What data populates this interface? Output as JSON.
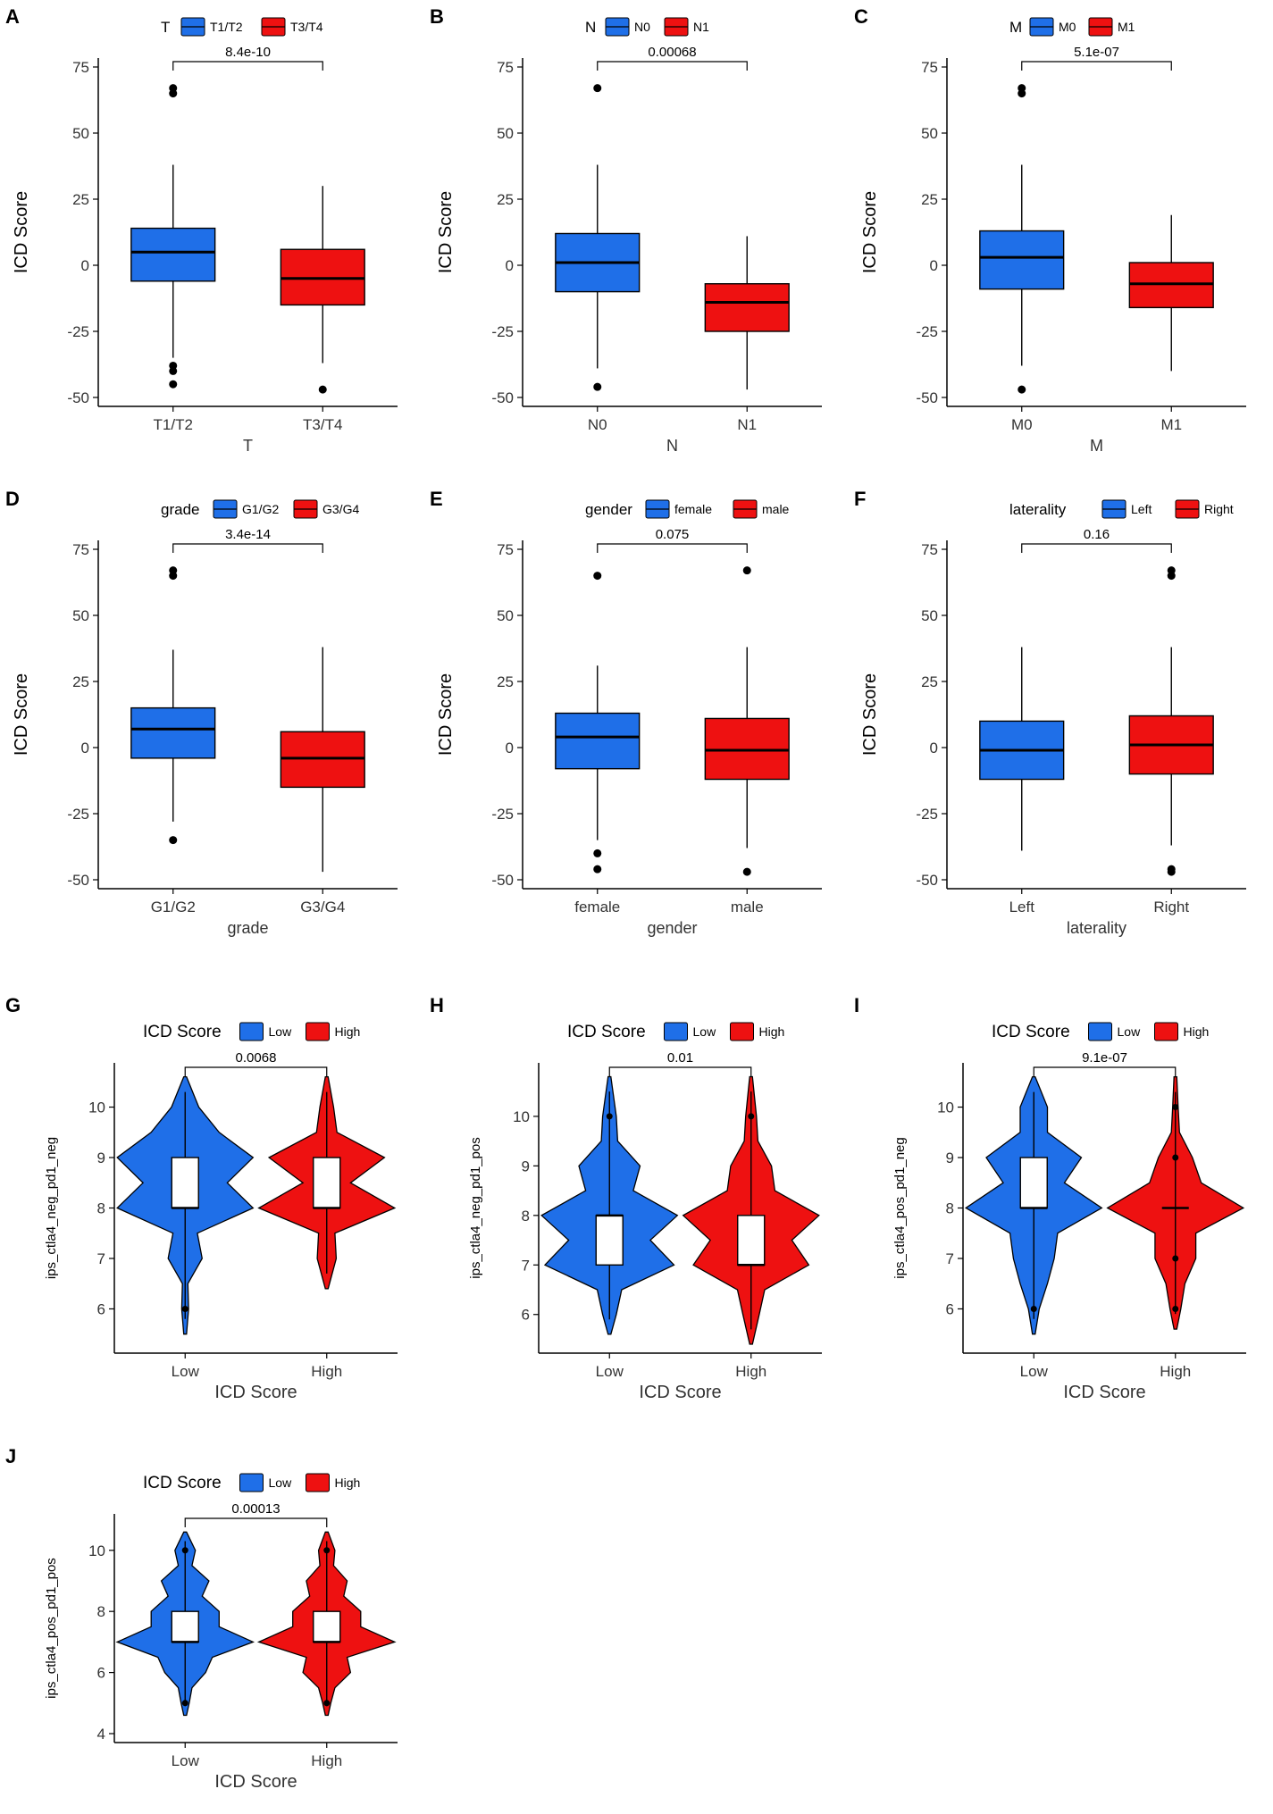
{
  "colors": {
    "blue": "#1f6fe8",
    "red": "#ee1111",
    "axis": "#000000"
  },
  "chart_data": [
    {
      "id": "A",
      "type": "box",
      "ylabel": "ICD Score",
      "xlabel": "T",
      "legend_title": "T",
      "categories": [
        "T1/T2",
        "T3/T4"
      ],
      "ylim": [
        -50,
        75
      ],
      "yticks": [
        -50,
        -25,
        0,
        25,
        50,
        75
      ],
      "pvalue": "8.4e-10",
      "series": [
        {
          "name": "T1/T2",
          "color": "blue",
          "min": -35,
          "q1": -6,
          "median": 5,
          "q3": 14,
          "max": 38,
          "outliers": [
            65,
            67,
            -38,
            -40,
            -45
          ]
        },
        {
          "name": "T3/T4",
          "color": "red",
          "min": -37,
          "q1": -15,
          "median": -5,
          "q3": 6,
          "max": 30,
          "outliers": [
            -47
          ]
        }
      ]
    },
    {
      "id": "B",
      "type": "box",
      "ylabel": "ICD Score",
      "xlabel": "N",
      "legend_title": "N",
      "categories": [
        "N0",
        "N1"
      ],
      "ylim": [
        -50,
        75
      ],
      "yticks": [
        -50,
        -25,
        0,
        25,
        50,
        75
      ],
      "pvalue": "0.00068",
      "series": [
        {
          "name": "N0",
          "color": "blue",
          "min": -39,
          "q1": -10,
          "median": 1,
          "q3": 12,
          "max": 38,
          "outliers": [
            67,
            -46
          ]
        },
        {
          "name": "N1",
          "color": "red",
          "min": -47,
          "q1": -25,
          "median": -14,
          "q3": -7,
          "max": 11,
          "outliers": []
        }
      ]
    },
    {
      "id": "C",
      "type": "box",
      "ylabel": "ICD Score",
      "xlabel": "M",
      "legend_title": "M",
      "categories": [
        "M0",
        "M1"
      ],
      "ylim": [
        -50,
        75
      ],
      "yticks": [
        -50,
        -25,
        0,
        25,
        50,
        75
      ],
      "pvalue": "5.1e-07",
      "series": [
        {
          "name": "M0",
          "color": "blue",
          "min": -38,
          "q1": -9,
          "median": 3,
          "q3": 13,
          "max": 38,
          "outliers": [
            65,
            67,
            -47
          ]
        },
        {
          "name": "M1",
          "color": "red",
          "min": -40,
          "q1": -16,
          "median": -7,
          "q3": 1,
          "max": 19,
          "outliers": []
        }
      ]
    },
    {
      "id": "D",
      "type": "box",
      "ylabel": "ICD Score",
      "xlabel": "grade",
      "legend_title": "grade",
      "categories": [
        "G1/G2",
        "G3/G4"
      ],
      "ylim": [
        -50,
        75
      ],
      "yticks": [
        -50,
        -25,
        0,
        25,
        50,
        75
      ],
      "pvalue": "3.4e-14",
      "series": [
        {
          "name": "G1/G2",
          "color": "blue",
          "min": -28,
          "q1": -4,
          "median": 7,
          "q3": 15,
          "max": 37,
          "outliers": [
            65,
            67,
            -35
          ]
        },
        {
          "name": "G3/G4",
          "color": "red",
          "min": -47,
          "q1": -15,
          "median": -4,
          "q3": 6,
          "max": 38,
          "outliers": []
        }
      ]
    },
    {
      "id": "E",
      "type": "box",
      "ylabel": "ICD Score",
      "xlabel": "gender",
      "legend_title": "gender",
      "categories": [
        "female",
        "male"
      ],
      "ylim": [
        -50,
        75
      ],
      "yticks": [
        -50,
        -25,
        0,
        25,
        50,
        75
      ],
      "pvalue": "0.075",
      "series": [
        {
          "name": "female",
          "color": "blue",
          "min": -35,
          "q1": -8,
          "median": 4,
          "q3": 13,
          "max": 31,
          "outliers": [
            65,
            -40,
            -46
          ]
        },
        {
          "name": "male",
          "color": "red",
          "min": -38,
          "q1": -12,
          "median": -1,
          "q3": 11,
          "max": 38,
          "outliers": [
            67,
            -47
          ]
        }
      ]
    },
    {
      "id": "F",
      "type": "box",
      "ylabel": "ICD Score",
      "xlabel": "laterality",
      "legend_title": "laterality",
      "categories": [
        "Left",
        "Right"
      ],
      "ylim": [
        -50,
        75
      ],
      "yticks": [
        -50,
        -25,
        0,
        25,
        50,
        75
      ],
      "pvalue": "0.16",
      "series": [
        {
          "name": "Left",
          "color": "blue",
          "min": -39,
          "q1": -12,
          "median": -1,
          "q3": 10,
          "max": 38,
          "outliers": []
        },
        {
          "name": "Right",
          "color": "red",
          "min": -37,
          "q1": -10,
          "median": 1,
          "q3": 12,
          "max": 38,
          "outliers": [
            65,
            67,
            -46,
            -47
          ]
        }
      ]
    },
    {
      "id": "G",
      "type": "violin",
      "ylabel": "ips_ctla4_neg_pd1_neg",
      "xlabel": "ICD Score",
      "legend_title": "ICD Score",
      "categories": [
        "Low",
        "High"
      ],
      "ylim": [
        5.3,
        10.7
      ],
      "yticks": [
        6,
        7,
        8,
        9,
        10
      ],
      "pvalue": "0.0068",
      "series": [
        {
          "name": "Low",
          "color": "blue",
          "ymin": 5.5,
          "ymax": 10.6,
          "q1": 8,
          "median": 8,
          "q3": 9,
          "wmin": 7,
          "wmax": 10,
          "density": [
            [
              5.5,
              0.02
            ],
            [
              6,
              0.05
            ],
            [
              6.5,
              0.04
            ],
            [
              7,
              0.25
            ],
            [
              7.5,
              0.18
            ],
            [
              8,
              1.0
            ],
            [
              8.5,
              0.62
            ],
            [
              9,
              1.0
            ],
            [
              9.5,
              0.5
            ],
            [
              10,
              0.2
            ],
            [
              10.6,
              0.02
            ]
          ],
          "outliers": [
            6
          ]
        },
        {
          "name": "High",
          "color": "red",
          "ymin": 6.4,
          "ymax": 10.6,
          "q1": 8,
          "median": 8,
          "q3": 9,
          "wmin": 7,
          "wmax": 10,
          "density": [
            [
              6.4,
              0.02
            ],
            [
              7,
              0.14
            ],
            [
              7.5,
              0.12
            ],
            [
              8,
              1.0
            ],
            [
              8.5,
              0.35
            ],
            [
              9,
              0.85
            ],
            [
              9.5,
              0.15
            ],
            [
              10,
              0.1
            ],
            [
              10.6,
              0.02
            ]
          ],
          "outliers": []
        }
      ]
    },
    {
      "id": "H",
      "type": "violin",
      "ylabel": "ips_ctla4_neg_pd1_pos",
      "xlabel": "ICD Score",
      "legend_title": "ICD Score",
      "categories": [
        "Low",
        "High"
      ],
      "ylim": [
        5.4,
        10.9
      ],
      "yticks": [
        6,
        7,
        8,
        9,
        10
      ],
      "pvalue": "0.01",
      "series": [
        {
          "name": "Low",
          "color": "blue",
          "ymin": 5.6,
          "ymax": 10.8,
          "q1": 7,
          "median": 8,
          "q3": 8,
          "wmin": 6,
          "wmax": 9,
          "density": [
            [
              5.6,
              0.02
            ],
            [
              6,
              0.1
            ],
            [
              6.5,
              0.18
            ],
            [
              7,
              0.95
            ],
            [
              7.5,
              0.6
            ],
            [
              8,
              1.0
            ],
            [
              8.5,
              0.35
            ],
            [
              9,
              0.45
            ],
            [
              9.5,
              0.12
            ],
            [
              10,
              0.1
            ],
            [
              10.8,
              0.02
            ]
          ],
          "outliers": [
            10
          ]
        },
        {
          "name": "High",
          "color": "red",
          "ymin": 5.4,
          "ymax": 10.8,
          "q1": 7,
          "median": 7,
          "q3": 8,
          "wmin": 6,
          "wmax": 9,
          "density": [
            [
              5.4,
              0.02
            ],
            [
              6,
              0.12
            ],
            [
              6.5,
              0.2
            ],
            [
              7,
              0.85
            ],
            [
              7.5,
              0.6
            ],
            [
              8,
              1.0
            ],
            [
              8.5,
              0.35
            ],
            [
              9,
              0.3
            ],
            [
              9.5,
              0.1
            ],
            [
              10,
              0.08
            ],
            [
              10.8,
              0.02
            ]
          ],
          "outliers": [
            10
          ]
        }
      ]
    },
    {
      "id": "I",
      "type": "violin",
      "ylabel": "ips_ctla4_pos_pd1_neg",
      "xlabel": "ICD Score",
      "legend_title": "ICD Score",
      "categories": [
        "Low",
        "High"
      ],
      "ylim": [
        5.3,
        10.7
      ],
      "yticks": [
        6,
        7,
        8,
        9,
        10
      ],
      "pvalue": "9.1e-07",
      "series": [
        {
          "name": "Low",
          "color": "blue",
          "ymin": 5.5,
          "ymax": 10.6,
          "q1": 8,
          "median": 8,
          "q3": 9,
          "wmin": 7,
          "wmax": 10,
          "density": [
            [
              5.5,
              0.02
            ],
            [
              6,
              0.08
            ],
            [
              6.5,
              0.2
            ],
            [
              7,
              0.3
            ],
            [
              7.5,
              0.35
            ],
            [
              8,
              1.0
            ],
            [
              8.5,
              0.45
            ],
            [
              9,
              0.7
            ],
            [
              9.5,
              0.2
            ],
            [
              10,
              0.2
            ],
            [
              10.6,
              0.02
            ]
          ],
          "outliers": [
            6
          ]
        },
        {
          "name": "High",
          "color": "red",
          "ymin": 5.6,
          "ymax": 10.6,
          "q1": 8,
          "median": 8,
          "q3": 8,
          "wmin": 8,
          "wmax": 8,
          "density": [
            [
              5.6,
              0.02
            ],
            [
              6,
              0.08
            ],
            [
              6.5,
              0.14
            ],
            [
              7,
              0.3
            ],
            [
              7.5,
              0.3
            ],
            [
              8,
              1.0
            ],
            [
              8.5,
              0.38
            ],
            [
              9,
              0.25
            ],
            [
              9.5,
              0.06
            ],
            [
              10,
              0.04
            ],
            [
              10.6,
              0.02
            ]
          ],
          "outliers": [
            6,
            7,
            9,
            10
          ]
        }
      ]
    },
    {
      "id": "J",
      "type": "violin",
      "ylabel": "ips_ctla4_pos_pd1_pos",
      "xlabel": "ICD Score",
      "legend_title": "ICD Score",
      "categories": [
        "Low",
        "High"
      ],
      "ylim": [
        4,
        10.9
      ],
      "yticks": [
        4,
        6,
        8,
        10
      ],
      "pvalue": "0.00013",
      "series": [
        {
          "name": "Low",
          "color": "blue",
          "ymin": 4.6,
          "ymax": 10.6,
          "q1": 7,
          "median": 7,
          "q3": 8,
          "wmin": 6,
          "wmax": 9,
          "density": [
            [
              4.6,
              0.02
            ],
            [
              5,
              0.06
            ],
            [
              5.5,
              0.1
            ],
            [
              6,
              0.3
            ],
            [
              6.5,
              0.4
            ],
            [
              7,
              1.0
            ],
            [
              7.5,
              0.5
            ],
            [
              8,
              0.5
            ],
            [
              8.5,
              0.25
            ],
            [
              9,
              0.35
            ],
            [
              9.5,
              0.1
            ],
            [
              10,
              0.15
            ],
            [
              10.6,
              0.02
            ]
          ],
          "outliers": [
            5,
            10
          ]
        },
        {
          "name": "High",
          "color": "red",
          "ymin": 4.6,
          "ymax": 10.6,
          "q1": 7,
          "median": 7,
          "q3": 8,
          "wmin": 6,
          "wmax": 9,
          "density": [
            [
              4.6,
              0.02
            ],
            [
              5,
              0.06
            ],
            [
              5.5,
              0.12
            ],
            [
              6,
              0.35
            ],
            [
              6.5,
              0.3
            ],
            [
              7,
              1.0
            ],
            [
              7.5,
              0.5
            ],
            [
              8,
              0.5
            ],
            [
              8.5,
              0.25
            ],
            [
              9,
              0.3
            ],
            [
              9.5,
              0.1
            ],
            [
              10,
              0.12
            ],
            [
              10.6,
              0.02
            ]
          ],
          "outliers": [
            5,
            10
          ]
        }
      ]
    }
  ]
}
